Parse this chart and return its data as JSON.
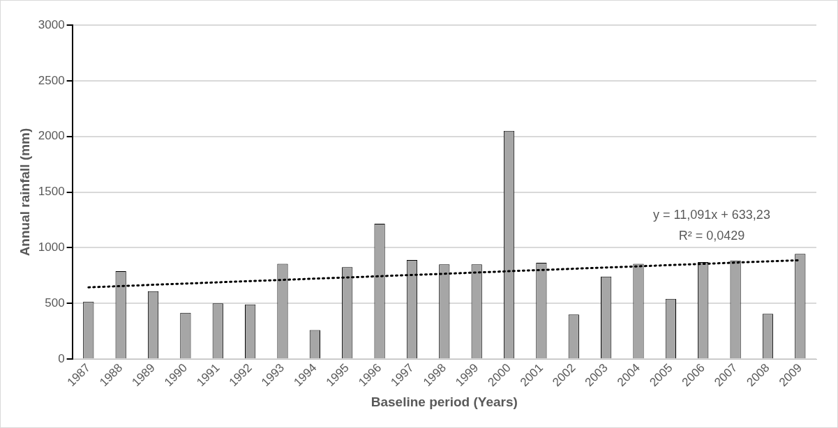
{
  "chart_data": {
    "type": "bar",
    "xlabel": "Baseline period (Years)",
    "ylabel": "Annual rainfall (mm)",
    "categories": [
      "1987",
      "1988",
      "1989",
      "1990",
      "1991",
      "1992",
      "1993",
      "1994",
      "1995",
      "1996",
      "1997",
      "1998",
      "1999",
      "2000",
      "2001",
      "2002",
      "2003",
      "2004",
      "2005",
      "2006",
      "2007",
      "2008",
      "2009"
    ],
    "series": [
      {
        "color": "#a6a6a6",
        "values": [
          515,
          790,
          610,
          415,
          500,
          490,
          855,
          260,
          825,
          1215,
          890,
          850,
          850,
          2050,
          865,
          400,
          740,
          855,
          540,
          870,
          885,
          405,
          945
        ]
      },
      {
        "type": "line",
        "color": "#000000",
        "values": [
          644,
          655,
          667,
          678,
          689,
          700,
          711,
          722,
          733,
          744,
          755,
          766,
          777,
          789,
          800,
          811,
          822,
          833,
          844,
          855,
          866,
          877,
          888
        ],
        "line_style": "dotted",
        "marker": "none"
      }
    ],
    "ylim": [
      0,
      3000
    ],
    "yticks": [
      0,
      500,
      1000,
      1500,
      2000,
      2500,
      3000
    ],
    "grid": "y",
    "legend": false,
    "annotations": [
      "y = 11,091x + 633,23",
      "R² = 0,0429"
    ]
  }
}
